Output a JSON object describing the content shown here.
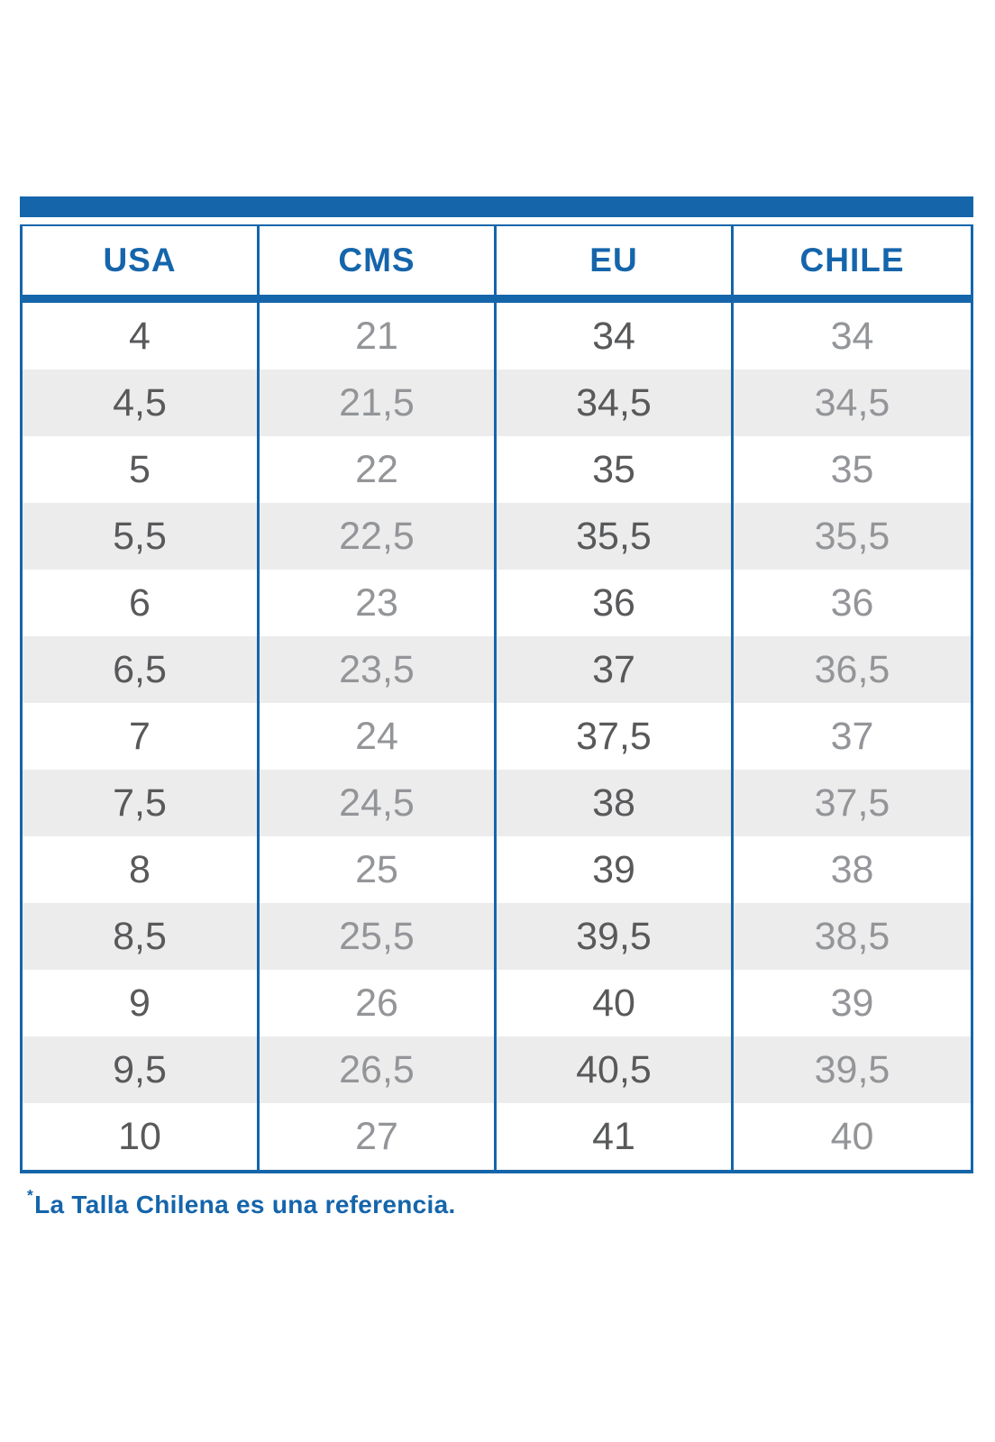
{
  "chart_data": {
    "type": "table",
    "columns": [
      "USA",
      "CMS",
      "EU",
      "CHILE"
    ],
    "rows": [
      [
        "4",
        "21",
        "34",
        "34"
      ],
      [
        "4,5",
        "21,5",
        "34,5",
        "34,5"
      ],
      [
        "5",
        "22",
        "35",
        "35"
      ],
      [
        "5,5",
        "22,5",
        "35,5",
        "35,5"
      ],
      [
        "6",
        "23",
        "36",
        "36"
      ],
      [
        "6,5",
        "23,5",
        "37",
        "36,5"
      ],
      [
        "7",
        "24",
        "37,5",
        "37"
      ],
      [
        "7,5",
        "24,5",
        "38",
        "37,5"
      ],
      [
        "8",
        "25",
        "39",
        "38"
      ],
      [
        "8,5",
        "25,5",
        "39,5",
        "38,5"
      ],
      [
        "9",
        "26",
        "40",
        "39"
      ],
      [
        "9,5",
        "26,5",
        "40,5",
        "39,5"
      ],
      [
        "10",
        "27",
        "41",
        "40"
      ]
    ],
    "title": "",
    "legend_position": "none",
    "grid": "ruled-columns"
  },
  "footnote": {
    "marker": "*",
    "text": "La Talla Chilena es una referencia."
  },
  "colors": {
    "accent_blue": "#1565AB",
    "dark_text": "#58595B",
    "light_text": "#939598",
    "alt_row": "#ECECEC"
  }
}
